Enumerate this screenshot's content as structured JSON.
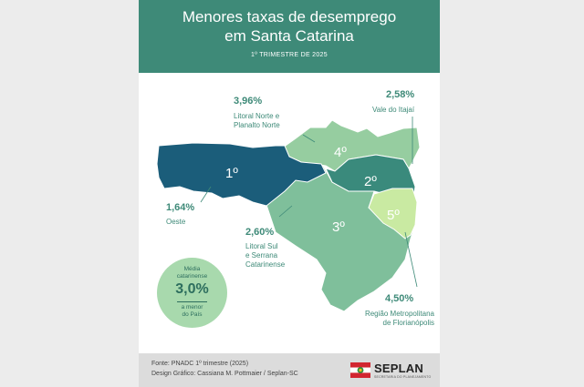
{
  "title_line1": "Menores taxas de desemprego",
  "title_line2": "em Santa Catarina",
  "subtitle": "1º TRIMESTRE DE 2025",
  "regions": [
    {
      "rank": "1º",
      "rate": "1,64%",
      "name_lines": [
        "Oeste"
      ],
      "color": "#1b5d7a"
    },
    {
      "rank": "2º",
      "rate": "2,58%",
      "name_lines": [
        "Vale do Itajaí"
      ],
      "color": "#3a8a7c"
    },
    {
      "rank": "3º",
      "rate": "2,60%",
      "name_lines": [
        "Litoral Sul",
        "e Serrana",
        "Catarinense"
      ],
      "color": "#7fbf9b"
    },
    {
      "rank": "4º",
      "rate": "3,96%",
      "name_lines": [
        "Litoral Norte e",
        "Planalto Norte"
      ],
      "color": "#96cda0"
    },
    {
      "rank": "5º",
      "rate": "4,50%",
      "name_lines": [
        "Região Metropolitana",
        "de Florianópolis"
      ],
      "color": "#c9eaa2"
    }
  ],
  "average": {
    "line1": "Média",
    "line2": "catarinense",
    "value": "3,0%",
    "line3": "a menor",
    "line4": "do País",
    "color": "#a8d9ad"
  },
  "footer": {
    "source": "Fonte: PNADC 1º trimestre (2025)",
    "credit": "Design Gráfico: Cassiana M. Pottmaier / Seplan-SC",
    "logo_name": "SEPLAN",
    "logo_tagline": "SECRETARIA DO PLANEJAMENTO"
  },
  "colors": {
    "header": "#3e8a78",
    "accent_text": "#3e8a78",
    "footer_bg": "#dcdcdc"
  }
}
